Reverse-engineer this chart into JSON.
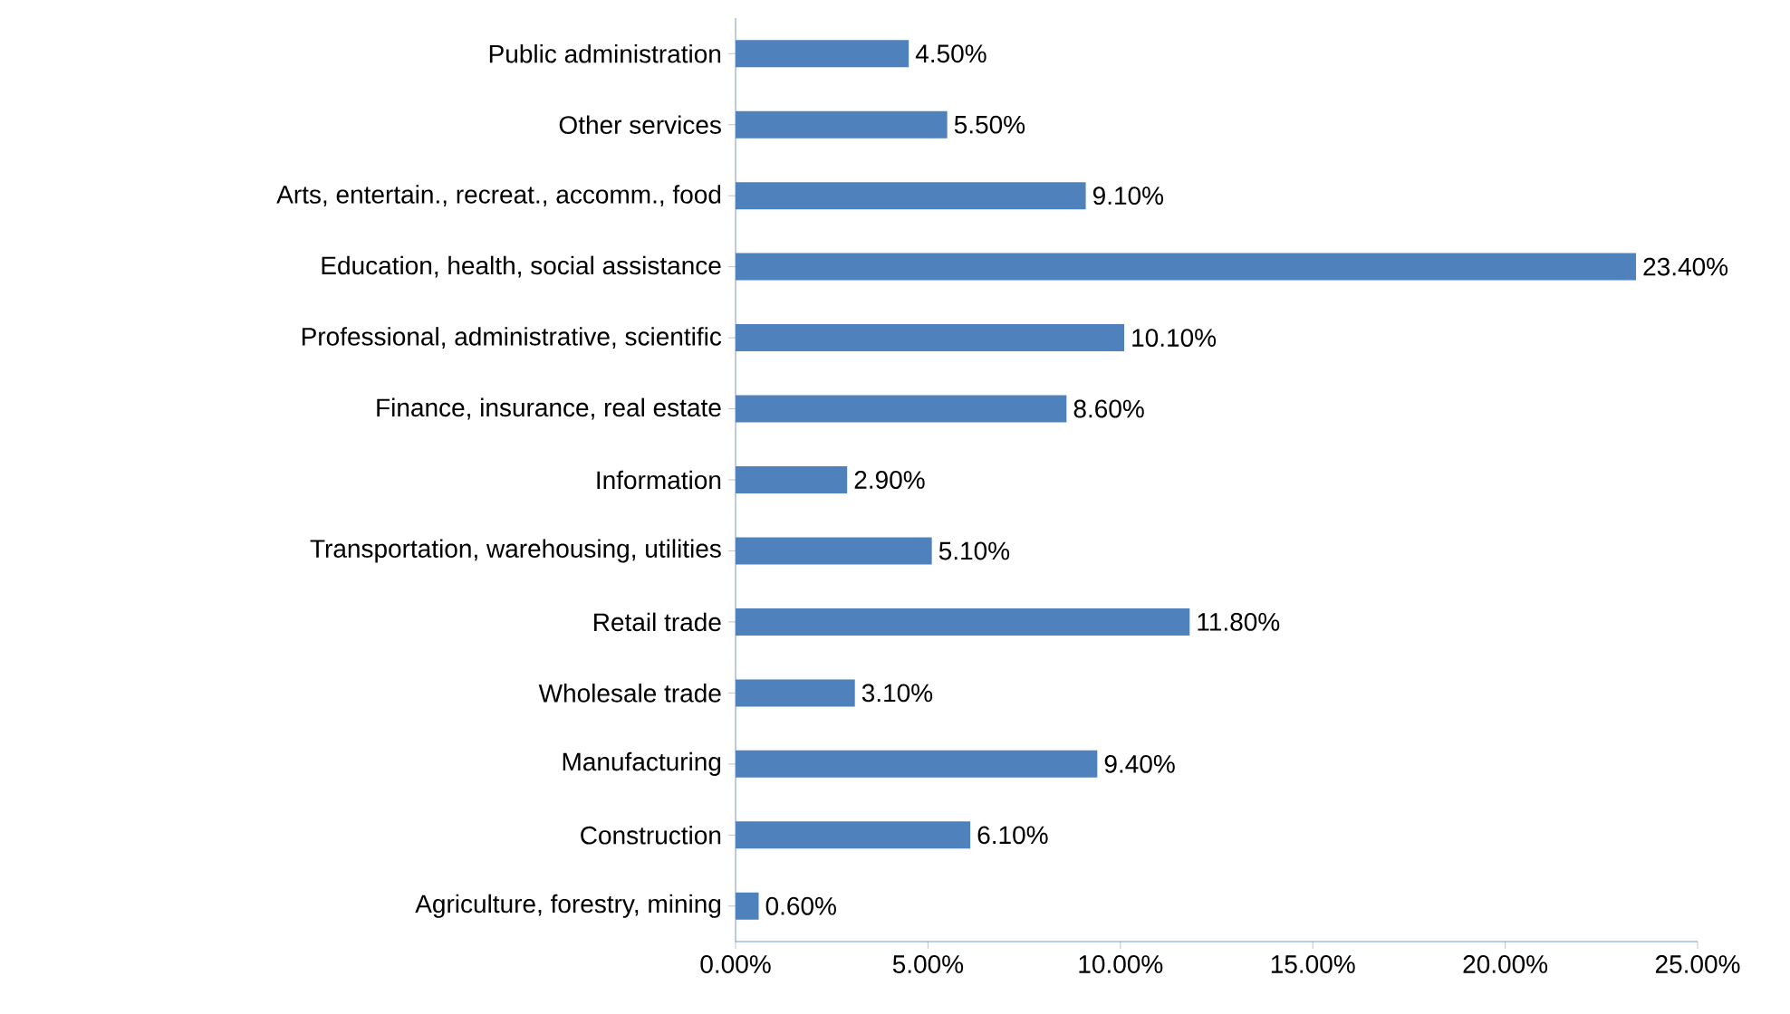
{
  "chart_data": {
    "type": "bar",
    "orientation": "horizontal",
    "categories": [
      "Public administration",
      "Other services",
      "Arts, entertain., recreat., accomm., food",
      "Education, health, social assistance",
      "Professional, administrative, scientific",
      "Finance, insurance, real estate",
      "Information",
      "Transportation, warehousing, utilities",
      "Retail trade",
      "Wholesale trade",
      "Manufacturing",
      "Construction",
      "Agriculture, forestry,  mining"
    ],
    "values": [
      4.5,
      5.5,
      9.1,
      23.4,
      10.1,
      8.6,
      2.9,
      5.1,
      11.8,
      3.1,
      9.4,
      6.1,
      0.6
    ],
    "value_labels": [
      "4.50%",
      "5.50%",
      "9.10%",
      "23.40%",
      "10.10%",
      "8.60%",
      "2.90%",
      "5.10%",
      "11.80%",
      "3.10%",
      "9.40%",
      "6.10%",
      "0.60%"
    ],
    "color": "#4f81bd",
    "xlim": [
      0,
      25
    ],
    "grid": false,
    "xticks": [
      {
        "value": 0,
        "label": "0.00%"
      },
      {
        "value": 5,
        "label": "5.00%"
      },
      {
        "value": 10,
        "label": "10.00%"
      },
      {
        "value": 15,
        "label": "15.00%"
      },
      {
        "value": 20,
        "label": "20.00%"
      },
      {
        "value": 25,
        "label": "25.00%"
      }
    ]
  }
}
